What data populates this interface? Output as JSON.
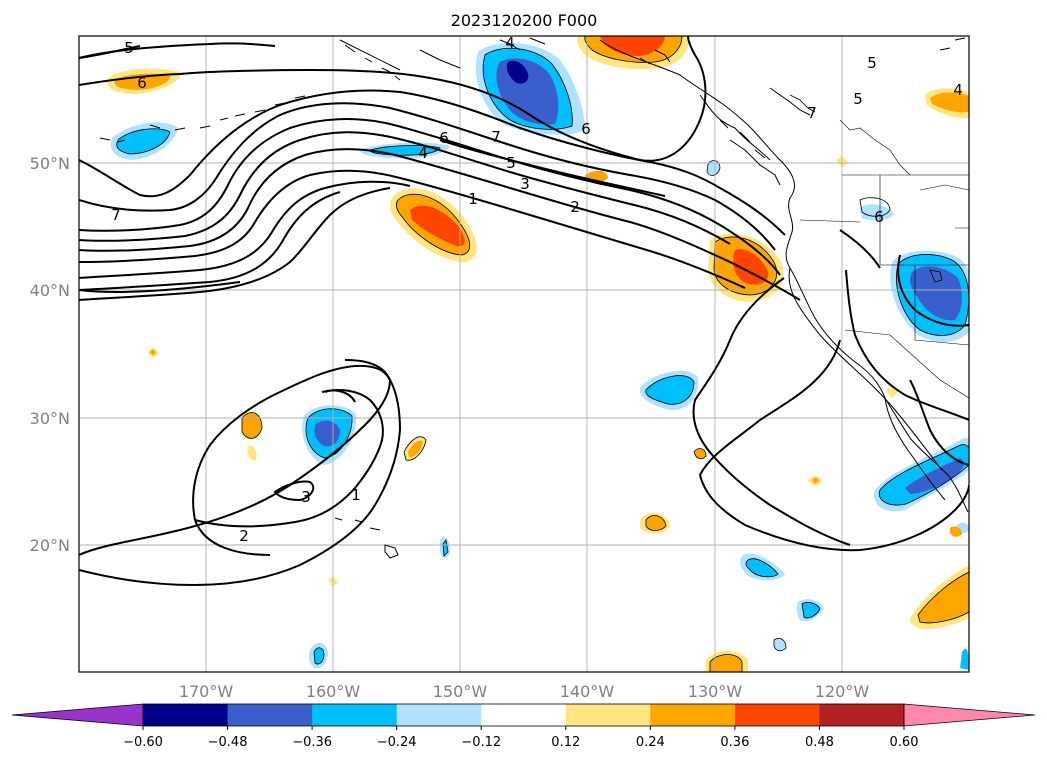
{
  "title": "2023120200 F000",
  "map": {
    "lon_range": [
      -180,
      -110
    ],
    "lat_range": [
      10,
      60
    ],
    "lon_labels": [
      "170°W",
      "160°W",
      "150°W",
      "140°W",
      "130°W",
      "120°W"
    ],
    "lat_labels": [
      "20°N",
      "30°N",
      "40°N",
      "50°N"
    ],
    "grid": true
  },
  "contours": {
    "labels": [
      "5",
      "6",
      "7",
      "4",
      "7",
      "6",
      "5",
      "3",
      "2",
      "1",
      "4",
      "6",
      "7",
      "5",
      "5",
      "4",
      "6",
      "3",
      "1",
      "2"
    ]
  },
  "colorbar": {
    "ticks": [
      "−0.60",
      "−0.48",
      "−0.36",
      "−0.24",
      "−0.12",
      "0.12",
      "0.24",
      "0.36",
      "0.48",
      "0.60"
    ],
    "colors": [
      "#9933cc",
      "#00008b",
      "#3a5fcd",
      "#00bfff",
      "#b0e2ff",
      "#ffffff",
      "#ffe680",
      "#ffa500",
      "#ff4500",
      "#b22222",
      "#ff88aa"
    ]
  },
  "field_colors": {
    "neg_light": "#b0e2ff",
    "neg_mid": "#00bfff",
    "neg_strong": "#3a5fcd",
    "pos_light": "#ffe680",
    "pos_mid": "#ffa500",
    "pos_strong": "#ff4500"
  }
}
